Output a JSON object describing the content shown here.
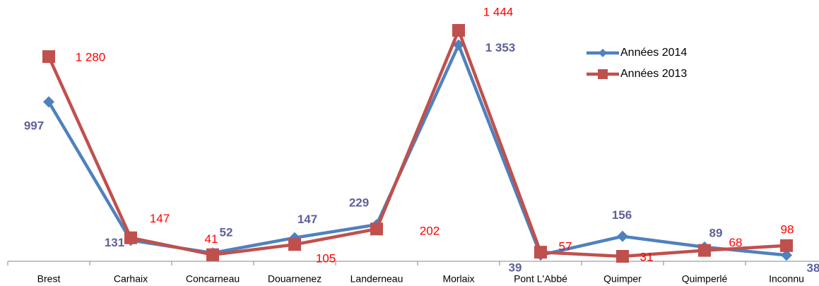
{
  "chart_data": {
    "type": "line",
    "categories": [
      "Brest",
      "Carhaix",
      "Concarneau",
      "Douarnenez",
      "Landerneau",
      "Morlaix",
      "Pont L'Abbé",
      "Quimper",
      "Quimperlé",
      "Inconnu"
    ],
    "series": [
      {
        "name": "Années 2014",
        "color": "#4f81bd",
        "label_color": "#5f5f9b",
        "marker": "diamond",
        "values": [
          997,
          131,
          52,
          147,
          229,
          1353,
          39,
          156,
          89,
          38
        ],
        "value_labels": [
          "997",
          "131",
          "52",
          "147",
          "229",
          "1 353",
          "39",
          "156",
          "89",
          "38"
        ]
      },
      {
        "name": "Années 2013",
        "color": "#c0504d",
        "label_color": "#ff0000",
        "marker": "square",
        "values": [
          1280,
          147,
          41,
          105,
          202,
          1444,
          57,
          31,
          68,
          98
        ],
        "value_labels": [
          "1 280",
          "147",
          "41",
          "105",
          "202",
          "1 444",
          "57",
          "31",
          "68",
          "98"
        ]
      }
    ],
    "legend": "upper right"
  }
}
